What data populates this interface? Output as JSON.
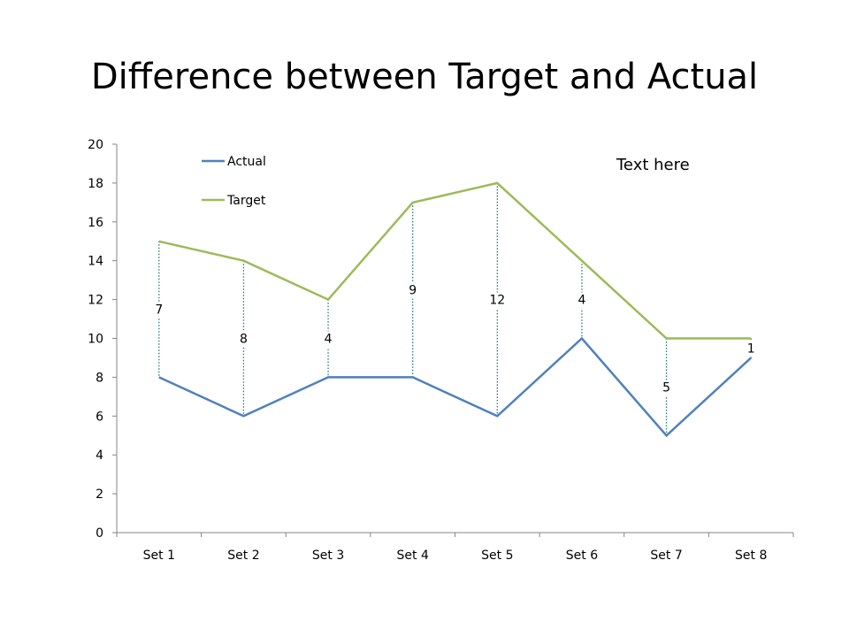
{
  "slide": {
    "title": "Difference between Target and Actual",
    "note": "Text here"
  },
  "chart_data": {
    "type": "line",
    "categories": [
      "Set 1",
      "Set 2",
      "Set 3",
      "Set 4",
      "Set 5",
      "Set 6",
      "Set 7",
      "Set 8"
    ],
    "series": [
      {
        "name": "Actual",
        "color": "#4f81bd",
        "values": [
          8,
          6,
          8,
          8,
          6,
          10,
          5,
          9
        ]
      },
      {
        "name": "Target",
        "color": "#9bbb59",
        "values": [
          15,
          14,
          12,
          17,
          18,
          14,
          10,
          10
        ]
      }
    ],
    "difference_labels": [
      "7",
      "8",
      "4",
      "9",
      "12",
      "4",
      "5",
      "1"
    ],
    "difference_lines": "dotted",
    "difference_color": "#1f7a7a",
    "ylim": [
      0,
      20
    ],
    "yticks": [
      0,
      2,
      4,
      6,
      8,
      10,
      12,
      14,
      16,
      18,
      20
    ],
    "xlabel": "",
    "ylabel": "",
    "grid": false,
    "legend": "top-left"
  }
}
